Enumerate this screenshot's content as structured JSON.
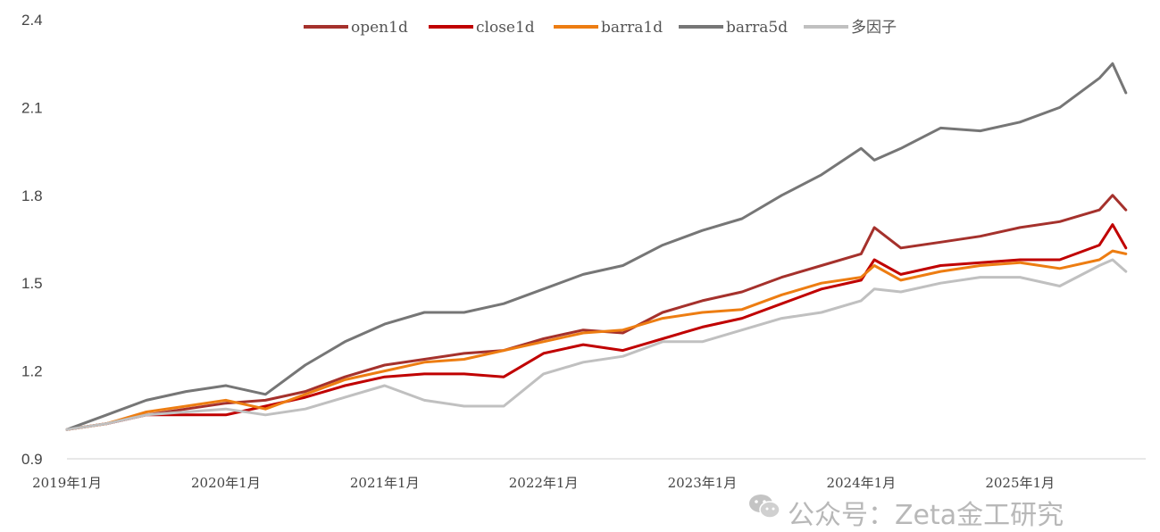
{
  "chart_data": {
    "type": "line",
    "title": "",
    "xlabel": "",
    "ylabel": "",
    "ylim": [
      0.9,
      2.4
    ],
    "yticks": [
      "0.9",
      "1.2",
      "1.5",
      "1.8",
      "2.1",
      "2.4"
    ],
    "x_tick_labels": [
      "2019年1月",
      "2020年1月",
      "2021年1月",
      "2022年1月",
      "2023年1月",
      "2024年1月",
      "2025年1月"
    ],
    "x": [
      "2019-01",
      "2019-04",
      "2019-07",
      "2019-10",
      "2020-01",
      "2020-04",
      "2020-07",
      "2020-10",
      "2021-01",
      "2021-04",
      "2021-07",
      "2021-10",
      "2022-01",
      "2022-04",
      "2022-07",
      "2022-10",
      "2023-01",
      "2023-04",
      "2023-07",
      "2023-10",
      "2024-01",
      "2024-02",
      "2024-04",
      "2024-07",
      "2024-10",
      "2025-01",
      "2025-04",
      "2025-07",
      "2025-08",
      "2025-09"
    ],
    "legend_position": "top",
    "grid": false,
    "series": [
      {
        "name": "open1d",
        "color": "#a5312c",
        "values": [
          1.0,
          1.02,
          1.05,
          1.07,
          1.09,
          1.1,
          1.13,
          1.18,
          1.22,
          1.24,
          1.26,
          1.27,
          1.31,
          1.34,
          1.33,
          1.4,
          1.44,
          1.47,
          1.52,
          1.56,
          1.6,
          1.69,
          1.62,
          1.64,
          1.66,
          1.69,
          1.71,
          1.75,
          1.8,
          1.75
        ]
      },
      {
        "name": "close1d",
        "color": "#c00000",
        "values": [
          1.0,
          1.02,
          1.05,
          1.05,
          1.05,
          1.08,
          1.11,
          1.15,
          1.18,
          1.19,
          1.19,
          1.18,
          1.26,
          1.29,
          1.27,
          1.31,
          1.35,
          1.38,
          1.43,
          1.48,
          1.51,
          1.58,
          1.53,
          1.56,
          1.57,
          1.58,
          1.58,
          1.63,
          1.7,
          1.62
        ]
      },
      {
        "name": "barra1d",
        "color": "#ed7d12",
        "values": [
          1.0,
          1.02,
          1.06,
          1.08,
          1.1,
          1.07,
          1.12,
          1.17,
          1.2,
          1.23,
          1.24,
          1.27,
          1.3,
          1.33,
          1.34,
          1.38,
          1.4,
          1.41,
          1.46,
          1.5,
          1.52,
          1.56,
          1.51,
          1.54,
          1.56,
          1.57,
          1.55,
          1.58,
          1.61,
          1.6
        ]
      },
      {
        "name": "barra5d",
        "color": "#767676",
        "values": [
          1.0,
          1.05,
          1.1,
          1.13,
          1.15,
          1.12,
          1.22,
          1.3,
          1.36,
          1.4,
          1.4,
          1.43,
          1.48,
          1.53,
          1.56,
          1.63,
          1.68,
          1.72,
          1.8,
          1.87,
          1.96,
          1.92,
          1.96,
          2.03,
          2.02,
          2.05,
          2.1,
          2.2,
          2.25,
          2.15
        ]
      },
      {
        "name": "多因子",
        "color": "#c0c0c0",
        "values": [
          1.0,
          1.02,
          1.05,
          1.06,
          1.07,
          1.05,
          1.07,
          1.11,
          1.15,
          1.1,
          1.08,
          1.08,
          1.19,
          1.23,
          1.25,
          1.3,
          1.3,
          1.34,
          1.38,
          1.4,
          1.44,
          1.48,
          1.47,
          1.5,
          1.52,
          1.52,
          1.49,
          1.56,
          1.58,
          1.54
        ]
      }
    ]
  },
  "watermark": {
    "text": "公众号：Zeta金工研究",
    "icon": "wechat-icon"
  }
}
